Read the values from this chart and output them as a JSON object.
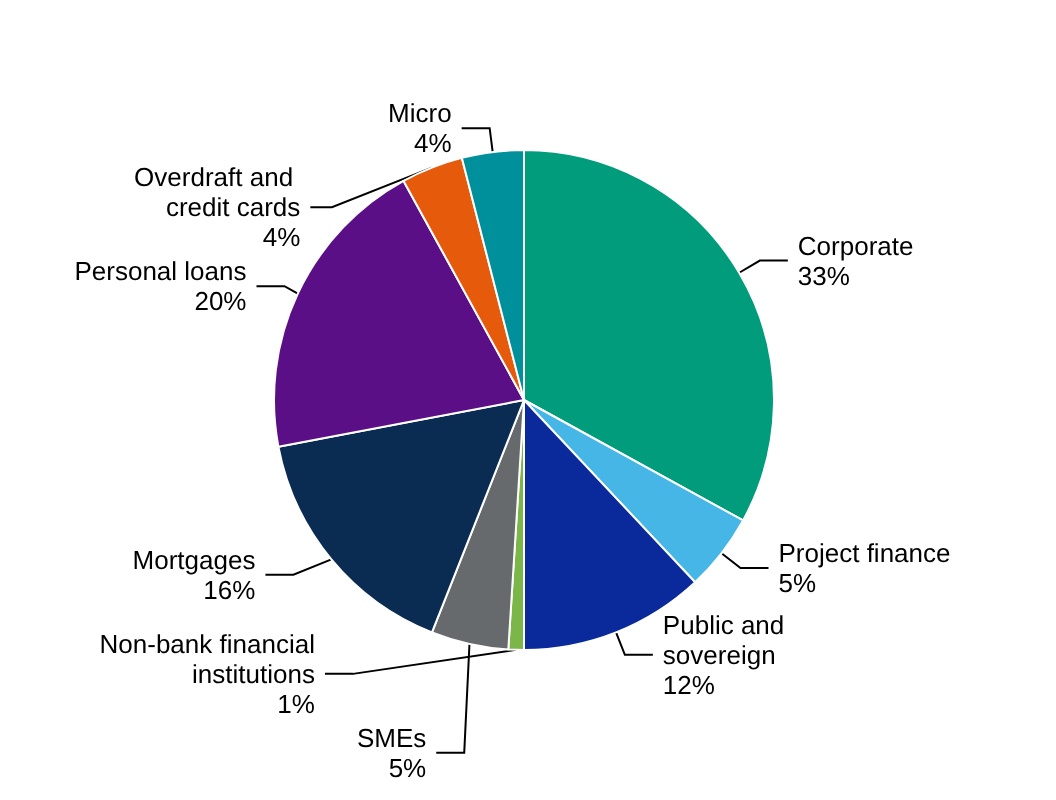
{
  "chart_data": {
    "type": "pie",
    "categories": [
      "Corporate",
      "Project finance",
      "Public and sovereign",
      "Non-bank financial institutions",
      "SMEs",
      "Mortgages",
      "Personal loans",
      "Overdraft and credit cards",
      "Micro"
    ],
    "values": [
      33,
      5,
      12,
      1,
      5,
      16,
      20,
      4,
      4
    ],
    "value_labels": [
      "33%",
      "5%",
      "12%",
      "1%",
      "5%",
      "16%",
      "20%",
      "4%",
      "4%"
    ],
    "colors": [
      "#009c7b",
      "#45b6e6",
      "#0a2a9c",
      "#7ab648",
      "#676a6c",
      "#0b2c52",
      "#5b0f86",
      "#e65a0c",
      "#00909c"
    ],
    "legend": false
  }
}
